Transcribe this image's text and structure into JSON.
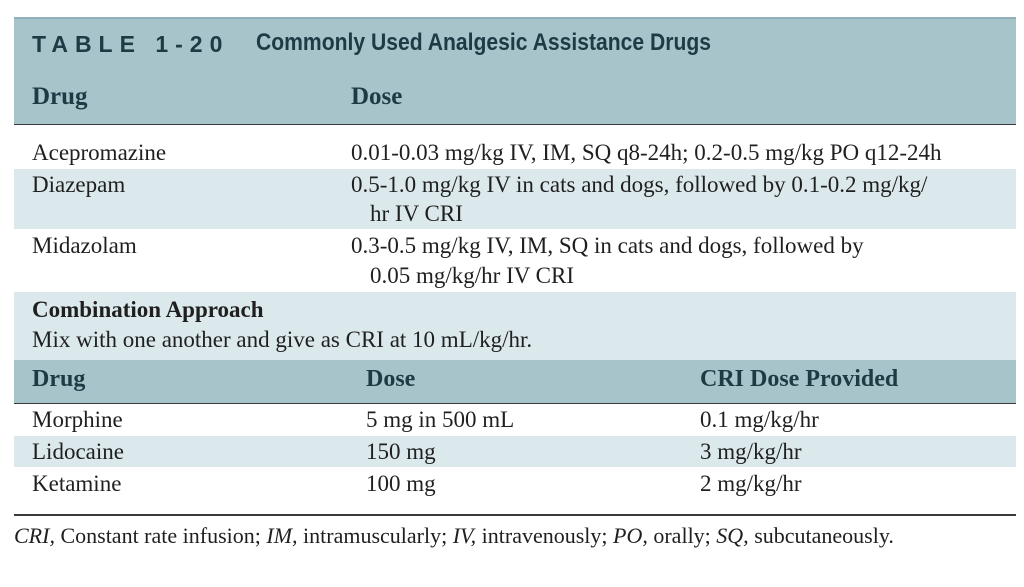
{
  "table": {
    "number": "TABLE 1-20",
    "title": "Commonly Used Analgesic Assistance Drugs",
    "header": {
      "drug": "Drug",
      "dose": "Dose"
    },
    "rows": [
      {
        "drug": "Acepromazine",
        "dose": [
          "0.01-0.03 mg/kg IV, IM, SQ q8-24h; 0.2-0.5 mg/kg PO q12-24h"
        ]
      },
      {
        "drug": "Diazepam",
        "dose": [
          "0.5-1.0 mg/kg IV in cats and dogs, followed by 0.1-0.2 mg/kg/",
          "hr IV CRI"
        ]
      },
      {
        "drug": "Midazolam",
        "dose": [
          "0.3-0.5 mg/kg IV, IM, SQ in cats and dogs, followed by",
          "0.05 mg/kg/hr IV CRI"
        ]
      }
    ],
    "combination": {
      "title": "Combination Approach",
      "note": "Mix with one another and give as CRI at 10 mL/kg/hr."
    },
    "sub_header": {
      "drug": "Drug",
      "dose": "Dose",
      "cri": "CRI Dose Provided"
    },
    "sub_rows": [
      {
        "drug": "Morphine",
        "dose": "5 mg in 500 mL",
        "cri": "0.1 mg/kg/hr"
      },
      {
        "drug": "Lidocaine",
        "dose": "150 mg",
        "cri": "3 mg/kg/hr"
      },
      {
        "drug": "Ketamine",
        "dose": "100 mg",
        "cri": "2 mg/kg/hr"
      }
    ]
  },
  "footnote": [
    {
      "abbr": "CRI,",
      "text": " Constant rate infusion; "
    },
    {
      "abbr": "IM,",
      "text": " intramuscularly; "
    },
    {
      "abbr": "IV,",
      "text": " intravenously; "
    },
    {
      "abbr": "PO,",
      "text": " orally; "
    },
    {
      "abbr": "SQ,",
      "text": " subcutaneously."
    }
  ]
}
